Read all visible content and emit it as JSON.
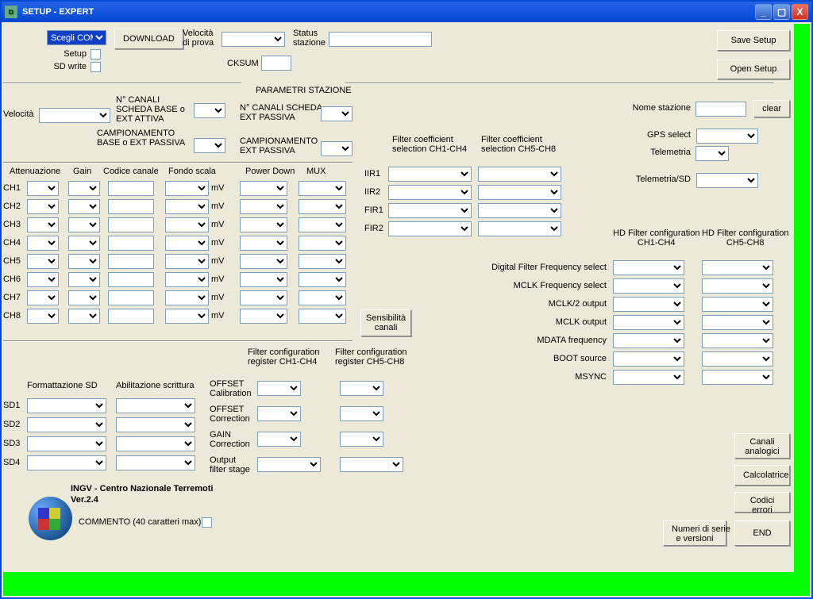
{
  "window": {
    "title": "SETUP  -  EXPERT"
  },
  "wbtns": {
    "min": "_",
    "max": "▢",
    "close": "X"
  },
  "top": {
    "scegli_com": "Scegli COM",
    "download": "DOWNLOAD",
    "velocita_prova": "Velocità\ndi prova",
    "status_stazione": "Status\nstazione",
    "cksum": "CKSUM",
    "setup": "Setup",
    "sdwrite": "SD write",
    "save": "Save Setup",
    "open": "Open Setup"
  },
  "station": {
    "header": "PARAMETRI STAZIONE",
    "velocita": "Velocità",
    "ncanali_base": "N° CANALI\nSCHEDA BASE o\nEXT ATTIVA",
    "camp_base": "CAMPIONAMENTO\nBASE o EXT PASSIVA",
    "ncanali_ext": "N° CANALI SCHEDA\nEXT PASSIVA",
    "camp_ext": "CAMPIONAMENTO\nEXT PASSIVA",
    "nome_stazione": "Nome stazione",
    "clear": "clear",
    "gps_select": "GPS select",
    "telemetria": "Telemetria",
    "telemetria_sd": "Telemetria/SD"
  },
  "chanhdr": {
    "att": "Attenuazione",
    "gain": "Gain",
    "codice": "Codice canale",
    "fondo": "Fondo scala",
    "pdown": "Power Down",
    "mux": "MUX"
  },
  "channels": [
    "CH1",
    "CH2",
    "CH3",
    "CH4",
    "CH5",
    "CH6",
    "CH7",
    "CH8"
  ],
  "mv": "mV",
  "sens_btn": "Sensibilità\ncanali",
  "iir": {
    "iir1": "IIR1",
    "iir2": "IIR2",
    "fir1": "FIR1",
    "fir2": "FIR2",
    "hdr14": "Filter coefficient\nselection CH1-CH4",
    "hdr58": "Filter coefficient\nselection CH5-CH8"
  },
  "fcfg": {
    "hdr14": "Filter configuration\nregister CH1-CH4",
    "hdr58": "Filter configuration\nregister CH5-CH8",
    "offset_cal": "OFFSET\nCalibration",
    "offset_cor": "OFFSET\nCorrection",
    "gain_cor": "GAIN\nCorrection",
    "out_stage": "Output\nfilter stage"
  },
  "sdfmt": {
    "hdr_fmt": "Formattazione SD",
    "hdr_abil": "Abilitazione scrittura",
    "rows": [
      "SD1",
      "SD2",
      "SD3",
      "SD4"
    ]
  },
  "hd": {
    "hdr14": "HD Filter configuration\nCH1-CH4",
    "hdr58": "HD Filter configuration\nCH5-CH8",
    "rows": [
      "Digital Filter Frequency select",
      "MCLK Frequency select",
      "MCLK/2 output",
      "MCLK output",
      "MDATA frequency",
      "BOOT source",
      "MSYNC"
    ]
  },
  "footer": {
    "org": "INGV - Centro Nazionale Terremoti",
    "ver": "Ver.2.4",
    "commento": "COMMENTO (40 caratteri max)"
  },
  "rbtns": {
    "canali": "Canali\nanalogici",
    "calc": "Calcolatrice",
    "codici": "Codici errori",
    "numeri": "Numeri di serie\ne versioni",
    "end": "END"
  }
}
